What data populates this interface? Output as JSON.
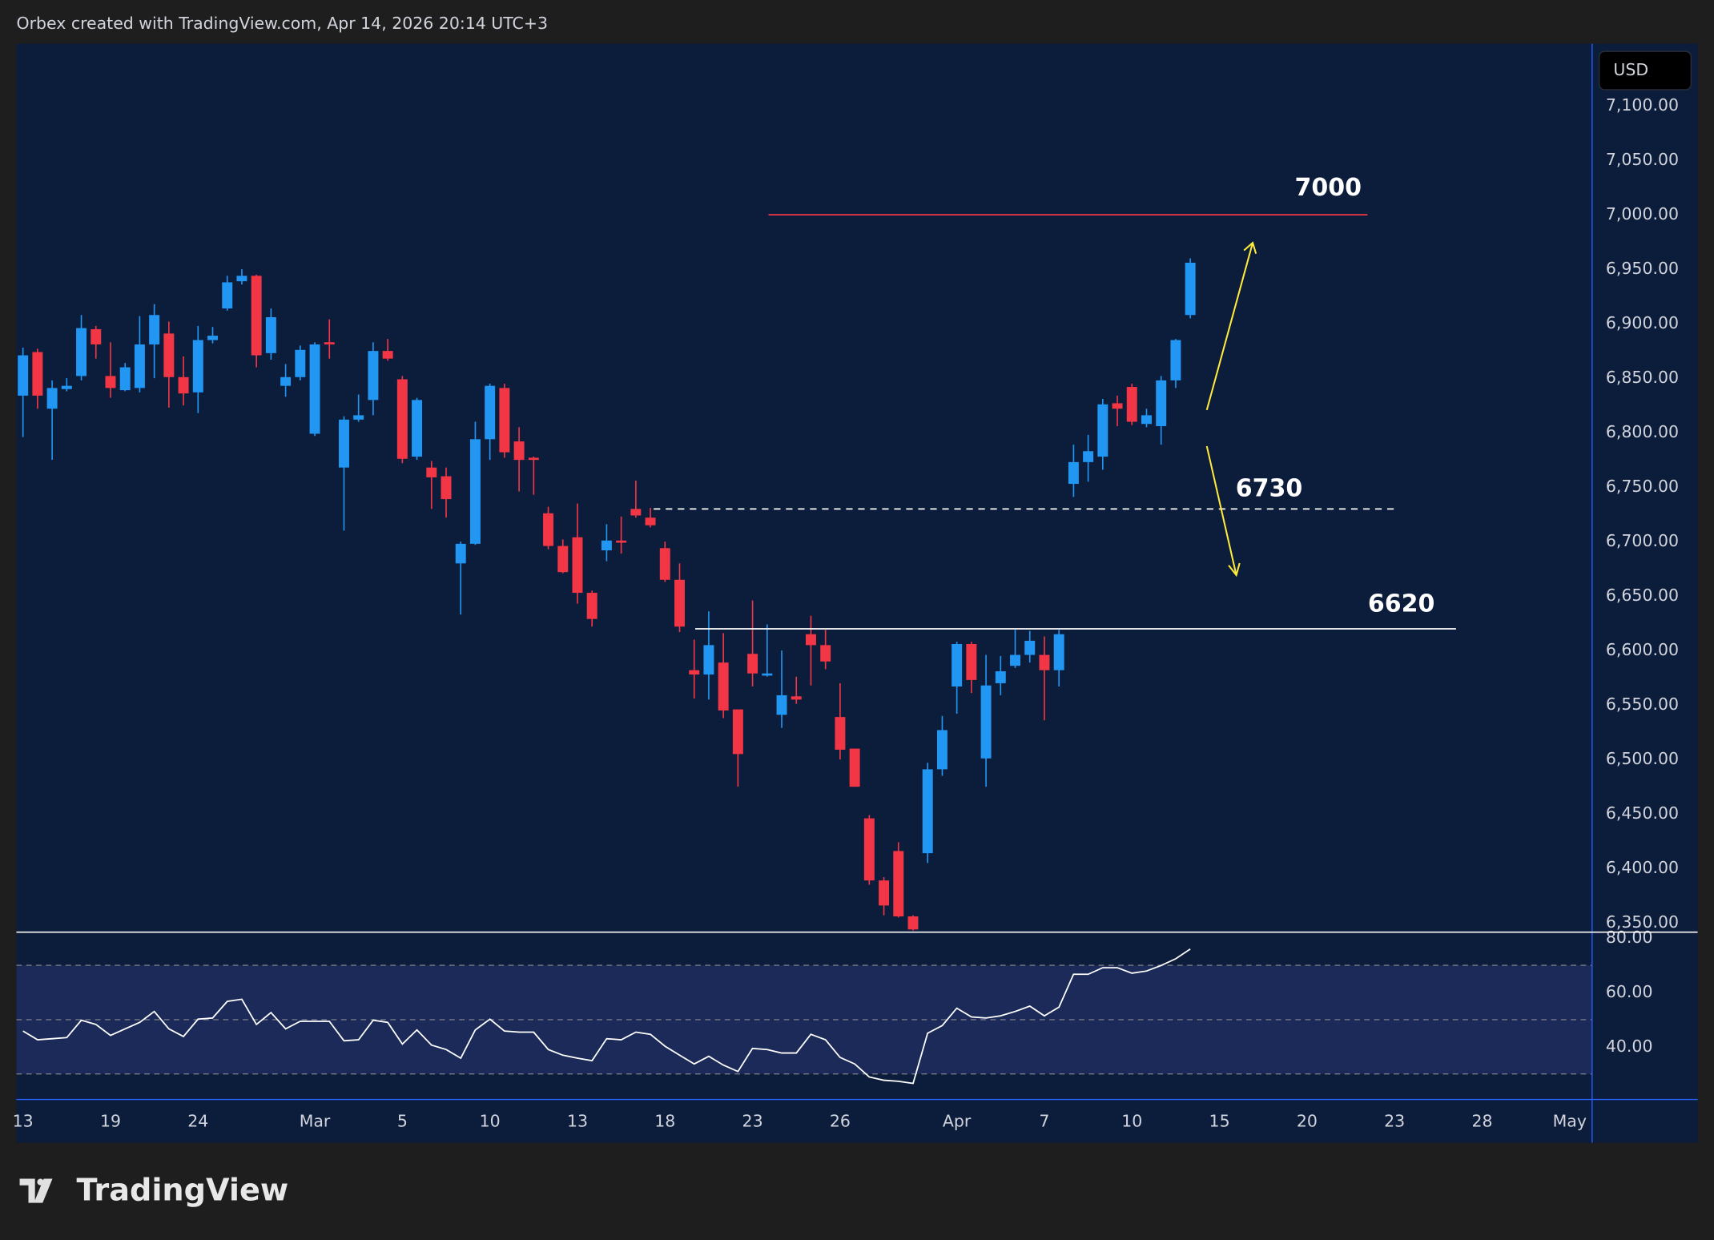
{
  "header": {
    "text": "Orbex created with TradingView.com, Apr 14, 2026 20:14 UTC+3"
  },
  "footer": {
    "brand": "TradingView"
  },
  "chart_data": [
    {
      "type": "candlestick",
      "currency": "USD",
      "up_color": "#2196f3",
      "down_color": "#f23645",
      "open": [
        6834,
        6874,
        6822,
        6840,
        6852,
        6895,
        6852,
        6839,
        6841,
        6881,
        6891,
        6851,
        6837,
        6885,
        6914,
        6939,
        6944,
        6873,
        6843,
        6851,
        6799,
        6883,
        6768,
        6812,
        6830,
        6875,
        6849,
        6778,
        6768,
        6760,
        6680,
        6698,
        6794,
        6841,
        6792,
        6777,
        6726,
        6696,
        6704,
        6653,
        6692,
        6701,
        6730,
        6722,
        6694,
        6665,
        6582,
        6578,
        6589,
        6546,
        6597,
        6577,
        6541,
        6558,
        6615,
        6605,
        6539,
        6510,
        6446,
        6389,
        6416,
        6356,
        6414,
        6491,
        6567,
        6606,
        6501,
        6570,
        6586,
        6596,
        6596,
        6582,
        6753,
        6773,
        6778,
        6827,
        6842,
        6808,
        6806,
        6848,
        6908
      ],
      "high": [
        6878,
        6877,
        6848,
        6850,
        6908,
        6898,
        6883,
        6864,
        6907,
        6918,
        6902,
        6870,
        6898,
        6897,
        6944,
        6950,
        6945,
        6914,
        6863,
        6880,
        6883,
        6904,
        6815,
        6835,
        6883,
        6886,
        6852,
        6832,
        6774,
        6768,
        6700,
        6810,
        6845,
        6845,
        6805,
        6778,
        6732,
        6702,
        6735,
        6655,
        6716,
        6723,
        6756,
        6731,
        6700,
        6680,
        6610,
        6636,
        6616,
        6546,
        6646,
        6624,
        6600,
        6576,
        6632,
        6619,
        6570,
        6510,
        6449,
        6392,
        6424,
        6357,
        6497,
        6540,
        6608,
        6608,
        6596,
        6595,
        6619,
        6618,
        6613,
        6619,
        6789,
        6798,
        6831,
        6834,
        6845,
        6822,
        6852,
        6886,
        6960
      ],
      "low": [
        6796,
        6822,
        6775,
        6838,
        6848,
        6868,
        6832,
        6838,
        6837,
        6850,
        6823,
        6825,
        6818,
        6882,
        6912,
        6936,
        6860,
        6867,
        6833,
        6848,
        6797,
        6868,
        6710,
        6810,
        6816,
        6866,
        6772,
        6775,
        6730,
        6722,
        6633,
        6697,
        6775,
        6777,
        6746,
        6743,
        6693,
        6671,
        6643,
        6622,
        6682,
        6689,
        6722,
        6713,
        6663,
        6617,
        6556,
        6555,
        6538,
        6475,
        6567,
        6576,
        6529,
        6551,
        6568,
        6583,
        6500,
        6475,
        6385,
        6357,
        6355,
        6343,
        6405,
        6485,
        6542,
        6561,
        6475,
        6559,
        6584,
        6589,
        6536,
        6567,
        6741,
        6755,
        6766,
        6806,
        6807,
        6805,
        6789,
        6841,
        6905
      ],
      "close": [
        6871,
        6834,
        6841,
        6843,
        6896,
        6881,
        6841,
        6860,
        6881,
        6908,
        6851,
        6836,
        6885,
        6889,
        6938,
        6944,
        6871,
        6906,
        6851,
        6876,
        6881,
        6881,
        6812,
        6816,
        6875,
        6868,
        6776,
        6830,
        6759,
        6739,
        6698,
        6794,
        6843,
        6782,
        6775,
        6775,
        6696,
        6672,
        6653,
        6629,
        6701,
        6699,
        6724,
        6715,
        6665,
        6622,
        6578,
        6605,
        6545,
        6505,
        6579,
        6579,
        6559,
        6555,
        6605,
        6590,
        6509,
        6475,
        6389,
        6366,
        6356,
        6344,
        6491,
        6527,
        6606,
        6573,
        6568,
        6581,
        6596,
        6609,
        6582,
        6615,
        6773,
        6783,
        6826,
        6822,
        6810,
        6816,
        6848,
        6885,
        6956
      ],
      "ylim": [
        6342,
        7157
      ],
      "yticks": [
        {
          "value": 6350,
          "label": "6,350.00"
        },
        {
          "value": 6400,
          "label": "6,400.00"
        },
        {
          "value": 6450,
          "label": "6,450.00"
        },
        {
          "value": 6500,
          "label": "6,500.00"
        },
        {
          "value": 6550,
          "label": "6,550.00"
        },
        {
          "value": 6600,
          "label": "6,600.00"
        },
        {
          "value": 6650,
          "label": "6,650.00"
        },
        {
          "value": 6700,
          "label": "6,700.00"
        },
        {
          "value": 6750,
          "label": "6,750.00"
        },
        {
          "value": 6800,
          "label": "6,800.00"
        },
        {
          "value": 6850,
          "label": "6,850.00"
        },
        {
          "value": 6900,
          "label": "6,900.00"
        },
        {
          "value": 6950,
          "label": "6,950.00"
        },
        {
          "value": 7000,
          "label": "7,000.00"
        },
        {
          "value": 7050,
          "label": "7,050.00"
        },
        {
          "value": 7100,
          "label": "7,100.00"
        }
      ],
      "xlim": [
        -0.45,
        107.5
      ],
      "xticks": [
        {
          "value": 0,
          "label": "13"
        },
        {
          "value": 6,
          "label": "19"
        },
        {
          "value": 12,
          "label": "24"
        },
        {
          "value": 20,
          "label": "Mar"
        },
        {
          "value": 26,
          "label": "5"
        },
        {
          "value": 32,
          "label": "10"
        },
        {
          "value": 38,
          "label": "13"
        },
        {
          "value": 44,
          "label": "18"
        },
        {
          "value": 50,
          "label": "23"
        },
        {
          "value": 56,
          "label": "26"
        },
        {
          "value": 64,
          "label": "Apr"
        },
        {
          "value": 70,
          "label": "7"
        },
        {
          "value": 76,
          "label": "10"
        },
        {
          "value": 82,
          "label": "15"
        },
        {
          "value": 88,
          "label": "20"
        },
        {
          "value": 94,
          "label": "23"
        },
        {
          "value": 100,
          "label": "28"
        },
        {
          "value": 106,
          "label": "May"
        }
      ],
      "levels": [
        {
          "value": 7000,
          "color": "#f23645",
          "style": "solid"
        },
        {
          "value": 6730,
          "color": "#ffffff",
          "style": "dashed"
        },
        {
          "value": 6620,
          "color": "#ffffff",
          "style": "solid"
        }
      ]
    },
    {
      "type": "line",
      "color": "#ffffff",
      "values": [
        45.8,
        42.6,
        43,
        43.4,
        49.8,
        48.2,
        44.2,
        46.6,
        49,
        53,
        46.6,
        43.8,
        50.2,
        50.6,
        56.7,
        57.5,
        48.2,
        52.6,
        46.6,
        49.4,
        49.4,
        49.4,
        42.2,
        42.6,
        49.8,
        49,
        41,
        46.2,
        40.6,
        39,
        35.8,
        46.2,
        50.2,
        45.8,
        45.4,
        45.4,
        39,
        36.9,
        35.8,
        34.9,
        43,
        42.6,
        45.4,
        44.6,
        40.2,
        36.9,
        33.7,
        36.5,
        33.3,
        30.9,
        39.4,
        39,
        37.7,
        37.7,
        44.6,
        42.6,
        36.1,
        33.7,
        28.9,
        27.7,
        27.3,
        26.5,
        45,
        47.8,
        54.2,
        51,
        50.6,
        51.4,
        53,
        55,
        51.4,
        54.6,
        66.7,
        66.7,
        69.1,
        69.1,
        67.1,
        67.9,
        69.9,
        72.4,
        76
      ],
      "ylim": [
        20.8,
        82.4
      ],
      "yticks": [
        {
          "value": 40,
          "label": "40.00"
        },
        {
          "value": 60,
          "label": "60.00"
        },
        {
          "value": 80,
          "label": "80.00"
        }
      ],
      "hlines": [
        70,
        50,
        30
      ]
    }
  ]
}
